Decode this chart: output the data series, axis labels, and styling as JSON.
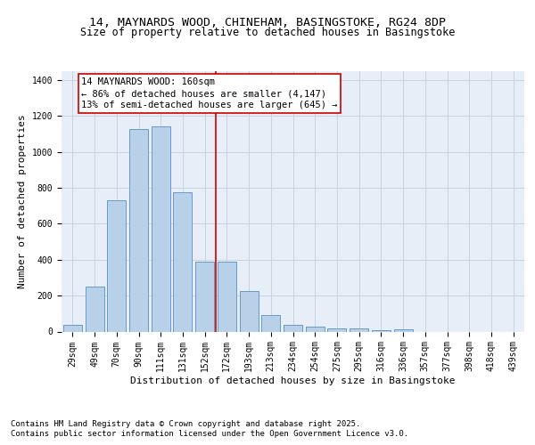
{
  "title_line1": "14, MAYNARDS WOOD, CHINEHAM, BASINGSTOKE, RG24 8DP",
  "title_line2": "Size of property relative to detached houses in Basingstoke",
  "xlabel": "Distribution of detached houses by size in Basingstoke",
  "ylabel": "Number of detached properties",
  "categories": [
    "29sqm",
    "49sqm",
    "70sqm",
    "90sqm",
    "111sqm",
    "131sqm",
    "152sqm",
    "172sqm",
    "193sqm",
    "213sqm",
    "234sqm",
    "254sqm",
    "275sqm",
    "295sqm",
    "316sqm",
    "336sqm",
    "357sqm",
    "377sqm",
    "398sqm",
    "418sqm",
    "439sqm"
  ],
  "bar_values": [
    35,
    248,
    730,
    1130,
    1145,
    775,
    390,
    390,
    228,
    90,
    35,
    25,
    18,
    15,
    5,
    10,
    0,
    0,
    0,
    0,
    0
  ],
  "bar_color": "#b8d0e8",
  "bar_edge_color": "#6699cc",
  "grid_color": "#c8d4e4",
  "bg_color": "#e8eef8",
  "vline_x": 6.5,
  "vline_color": "#cc0000",
  "annotation_text": "14 MAYNARDS WOOD: 160sqm\n← 86% of detached houses are smaller (4,147)\n13% of semi-detached houses are larger (645) →",
  "annotation_box_color": "#cc0000",
  "ylim": [
    0,
    1450
  ],
  "yticks": [
    0,
    200,
    400,
    600,
    800,
    1000,
    1200,
    1400
  ],
  "footer_line1": "Contains HM Land Registry data © Crown copyright and database right 2025.",
  "footer_line2": "Contains public sector information licensed under the Open Government Licence v3.0.",
  "title_fontsize": 9.5,
  "subtitle_fontsize": 8.5,
  "axis_label_fontsize": 8,
  "tick_fontsize": 7,
  "annotation_fontsize": 7.5,
  "footer_fontsize": 6.5
}
